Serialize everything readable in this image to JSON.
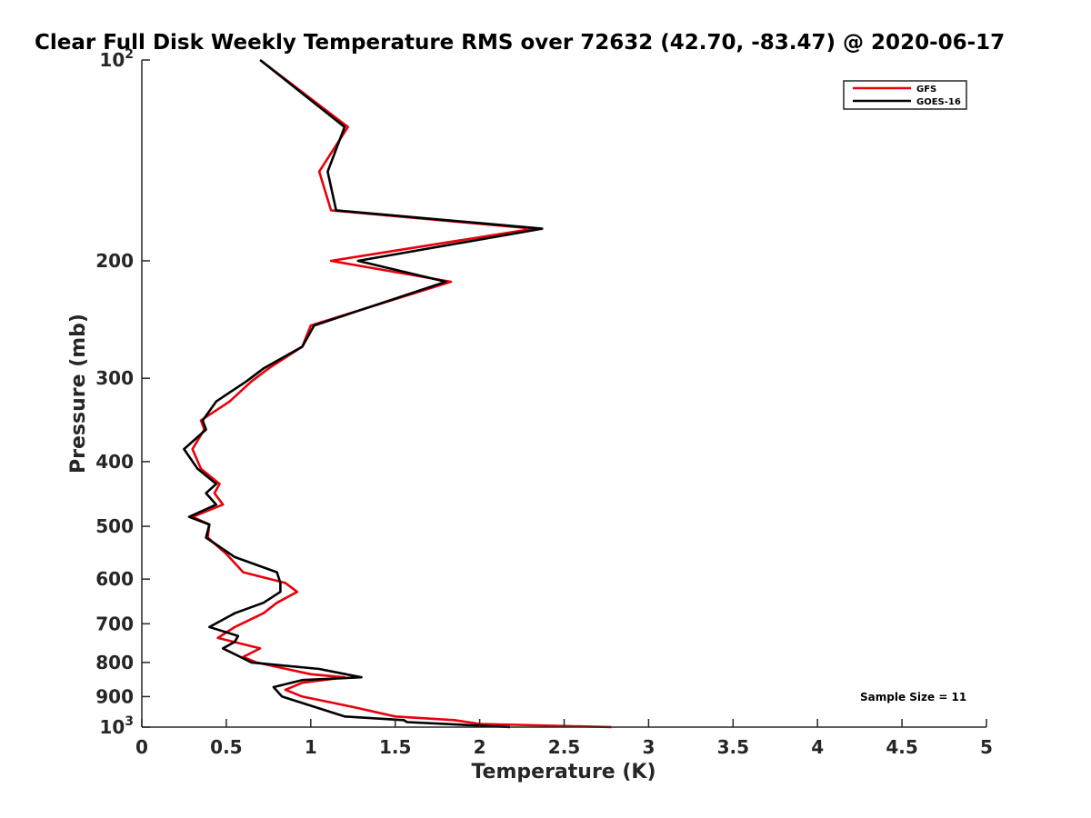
{
  "colors": {
    "gfs": "#e8000b",
    "goes": "#000000",
    "axis": "#262626"
  },
  "chart_data": {
    "type": "line",
    "title": "Clear Full Disk Weekly Temperature RMS over 72632 (42.70, -83.47) @ 2020-06-17",
    "xlabel": "Temperature (K)",
    "ylabel": "Pressure (mb)",
    "xlim": [
      0,
      5
    ],
    "ylim": [
      100,
      1000
    ],
    "y_scale": "log",
    "y_reversed": true,
    "grid": false,
    "legend_position": "top-right",
    "x_ticks": [
      "0",
      "0.5",
      "1",
      "1.5",
      "2",
      "2.5",
      "3",
      "3.5",
      "4",
      "4.5",
      "5"
    ],
    "y_ticks": [
      {
        "value": 100,
        "base": "10",
        "exp": "2"
      },
      {
        "value": 200,
        "text": "200"
      },
      {
        "value": 300,
        "text": "300"
      },
      {
        "value": 400,
        "text": "400"
      },
      {
        "value": 500,
        "text": "500"
      },
      {
        "value": 600,
        "text": "600"
      },
      {
        "value": 700,
        "text": "700"
      },
      {
        "value": 800,
        "text": "800"
      },
      {
        "value": 900,
        "text": "900"
      },
      {
        "value": 1000,
        "base": "10",
        "exp": "3"
      }
    ],
    "annotation": "Sample Size = 11",
    "series": [
      {
        "name": "GFS",
        "color": "#e8000b",
        "points": [
          [
            0.7,
            100
          ],
          [
            1.22,
            126
          ],
          [
            1.05,
            147
          ],
          [
            1.12,
            168
          ],
          [
            2.32,
            179
          ],
          [
            1.12,
            200
          ],
          [
            1.83,
            215
          ],
          [
            1.0,
            250
          ],
          [
            0.95,
            269
          ],
          [
            0.75,
            290
          ],
          [
            0.65,
            303
          ],
          [
            0.52,
            325
          ],
          [
            0.35,
            347
          ],
          [
            0.37,
            358
          ],
          [
            0.3,
            383
          ],
          [
            0.35,
            410
          ],
          [
            0.46,
            432
          ],
          [
            0.43,
            446
          ],
          [
            0.48,
            464
          ],
          [
            0.3,
            484
          ],
          [
            0.4,
            497
          ],
          [
            0.39,
            520
          ],
          [
            0.5,
            550
          ],
          [
            0.6,
            586
          ],
          [
            0.85,
            608
          ],
          [
            0.92,
            627
          ],
          [
            0.8,
            651
          ],
          [
            0.72,
            675
          ],
          [
            0.55,
            708
          ],
          [
            0.45,
            735
          ],
          [
            0.7,
            762
          ],
          [
            0.6,
            785
          ],
          [
            0.68,
            800
          ],
          [
            1.0,
            833
          ],
          [
            1.2,
            842
          ],
          [
            0.95,
            858
          ],
          [
            0.85,
            879
          ],
          [
            0.95,
            900
          ],
          [
            1.25,
            933
          ],
          [
            1.5,
            964
          ],
          [
            1.85,
            976
          ],
          [
            2.0,
            989
          ],
          [
            2.78,
            1000
          ]
        ]
      },
      {
        "name": "GOES-16",
        "color": "#000000",
        "points": [
          [
            0.7,
            100
          ],
          [
            1.2,
            126
          ],
          [
            1.1,
            147
          ],
          [
            1.15,
            168
          ],
          [
            2.37,
            179
          ],
          [
            1.28,
            200
          ],
          [
            1.8,
            215
          ],
          [
            1.02,
            250
          ],
          [
            0.95,
            269
          ],
          [
            0.72,
            290
          ],
          [
            0.62,
            303
          ],
          [
            0.44,
            325
          ],
          [
            0.36,
            347
          ],
          [
            0.38,
            358
          ],
          [
            0.25,
            383
          ],
          [
            0.33,
            410
          ],
          [
            0.44,
            432
          ],
          [
            0.38,
            446
          ],
          [
            0.44,
            464
          ],
          [
            0.28,
            484
          ],
          [
            0.4,
            497
          ],
          [
            0.38,
            520
          ],
          [
            0.55,
            556
          ],
          [
            0.8,
            586
          ],
          [
            0.82,
            608
          ],
          [
            0.82,
            627
          ],
          [
            0.72,
            651
          ],
          [
            0.55,
            675
          ],
          [
            0.4,
            708
          ],
          [
            0.57,
            730
          ],
          [
            0.55,
            745
          ],
          [
            0.48,
            762
          ],
          [
            0.65,
            800
          ],
          [
            1.05,
            818
          ],
          [
            1.3,
            842
          ],
          [
            0.95,
            850
          ],
          [
            0.78,
            871
          ],
          [
            0.83,
            900
          ],
          [
            1.2,
            964
          ],
          [
            1.55,
            976
          ],
          [
            1.57,
            983
          ],
          [
            2.18,
            1000
          ]
        ]
      }
    ]
  }
}
